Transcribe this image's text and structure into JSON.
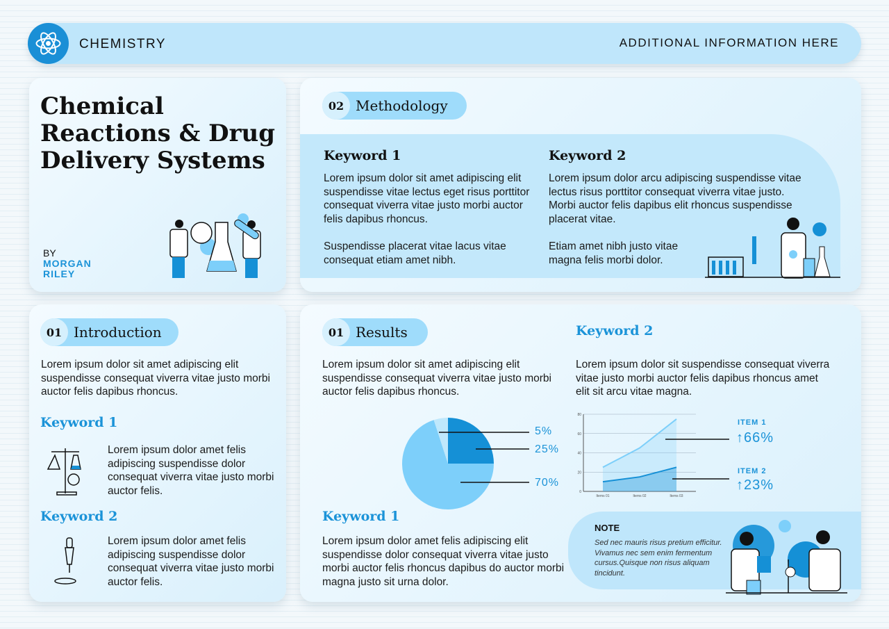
{
  "header": {
    "subject": "CHEMISTRY",
    "info": "ADDITIONAL INFORMATION HERE",
    "logo_icon": "atom-icon"
  },
  "title_card": {
    "title": "Chemical Reactions & Drug Delivery Systems",
    "by": "BY",
    "author_first": "MORGAN",
    "author_last": "RILEY"
  },
  "methodology": {
    "num": "02",
    "label": "Methodology",
    "k1": {
      "title": "Keyword 1",
      "p1": "Lorem ipsum dolor sit amet adipiscing elit suspendisse vitae lectus eget risus porttitor consequat viverra vitae justo morbi auctor felis dapibus rhoncus.",
      "p2": "Suspendisse placerat vitae lacus vitae consequat etiam amet nibh."
    },
    "k2": {
      "title": "Keyword 2",
      "p1": "Lorem ipsum dolor arcu adipiscing suspendisse vitae lectus risus porttitor consequat viverra vitae justo. Morbi auctor felis dapibus elit rhoncus suspendisse placerat vitae.",
      "p2": "Etiam amet nibh justo vitae magna felis morbi dolor."
    }
  },
  "introduction": {
    "num": "01",
    "label": "Introduction",
    "text": "Lorem ipsum dolor sit amet adipiscing elit suspendisse consequat viverra vitae justo morbi auctor felis dapibus rhoncus.",
    "k1": {
      "title": "Keyword 1",
      "text": "Lorem ipsum dolor amet felis adipiscing suspendisse dolor consequat viverra vitae justo morbi auctor felis."
    },
    "k2": {
      "title": "Keyword 2",
      "text": "Lorem ipsum dolor amet felis adipiscing suspendisse dolor consequat viverra vitae justo morbi auctor felis."
    }
  },
  "results": {
    "num": "01",
    "label": "Results",
    "text": "Lorem ipsum dolor sit amet adipiscing elit suspendisse consequat viverra vitae justo morbi auctor felis dapibus rhoncus.",
    "k2_title": "Keyword 2",
    "k2_text": "Lorem ipsum dolor sit suspendisse consequat viverra vitae justo morbi auctor felis dapibus rhoncus amet elit sit arcu vitae magna.",
    "k1_title": "Keyword 1",
    "k1_text": "Lorem ipsum dolor amet felis adipiscing elit suspendisse dolor consequat viverra vitae justo morbi auctor felis rhoncus dapibus do auctor morbi magna justo sit urna dolor.",
    "item1": {
      "label": "ITEM 1",
      "value": "↑66%"
    },
    "item2": {
      "label": "ITEM 2",
      "value": "↑23%"
    },
    "note": {
      "title": "NOTE",
      "text": "Sed nec mauris risus pretium efficitur. Vivamus nec sem enim fermentum cursus.Quisque non risus aliquam tincidunt."
    }
  },
  "chart_data": [
    {
      "type": "pie",
      "values": [
        5,
        25,
        70
      ],
      "labels": [
        "5%",
        "25%",
        "70%"
      ],
      "colors": [
        "#bfe8fc",
        "#1590d6",
        "#7dcffa"
      ]
    },
    {
      "type": "area",
      "categories": [
        "Items 01",
        "Items 02",
        "Items 03"
      ],
      "series": [
        {
          "values": [
            25,
            45,
            75
          ],
          "color": "#7dcffa"
        },
        {
          "values": [
            10,
            15,
            25
          ],
          "color": "#1590d6"
        }
      ],
      "ylim": [
        0,
        80
      ],
      "yticks": [
        "0",
        "20",
        "40",
        "60",
        "80"
      ],
      "grid": true
    }
  ]
}
